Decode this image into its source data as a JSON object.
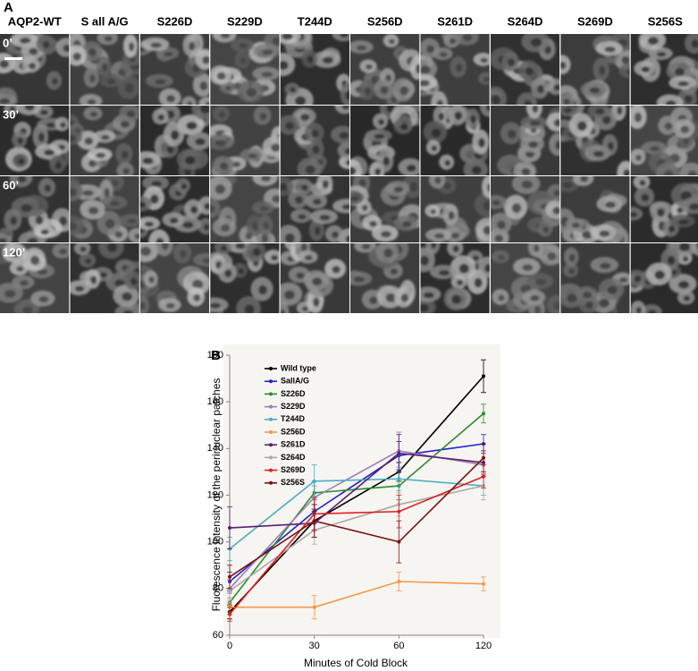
{
  "panel_a": {
    "label": "A",
    "columns": [
      "AQP2-WT",
      "S all A/G",
      "S226D",
      "S229D",
      "T244D",
      "S256D",
      "S261D",
      "S264D",
      "S269D",
      "S256S"
    ],
    "rows": [
      "0’",
      "30’",
      "60’",
      "120’"
    ]
  },
  "chart_data": {
    "type": "line",
    "panel_label": "B",
    "x_label": "Minutes of Cold Block",
    "y_label": "Fluorescence intensity of the perinuclear patches",
    "categories": [
      "0",
      "30",
      "60",
      "120"
    ],
    "ylim": [
      60,
      180
    ],
    "yticks": [
      60,
      80,
      100,
      120,
      140,
      160,
      180
    ],
    "legend": "upper left",
    "series": [
      {
        "name": "Wild type",
        "color": "#000000",
        "values": [
          70,
          109,
          130,
          171
        ],
        "errors": [
          3,
          4,
          4,
          7
        ]
      },
      {
        "name": "SallA/G",
        "color": "#2222cc",
        "values": [
          83,
          113,
          137,
          142
        ],
        "errors": [
          4,
          5,
          6,
          4
        ]
      },
      {
        "name": "S226D",
        "color": "#2e8b2e",
        "values": [
          74,
          121,
          124,
          155
        ],
        "errors": [
          4,
          5,
          6,
          4
        ]
      },
      {
        "name": "S229D",
        "color": "#9b7fb0",
        "values": [
          80,
          119,
          139,
          133
        ],
        "errors": [
          4,
          5,
          8,
          5
        ]
      },
      {
        "name": "T244D",
        "color": "#4bacc6",
        "values": [
          97,
          126,
          127,
          124
        ],
        "errors": [
          5,
          7,
          5,
          4
        ]
      },
      {
        "name": "S256D",
        "color": "#f79646",
        "values": [
          72,
          72,
          83,
          82
        ],
        "errors": [
          3,
          5,
          4,
          3
        ]
      },
      {
        "name": "S261D",
        "color": "#5c1f70",
        "values": [
          106,
          108,
          138,
          134
        ],
        "errors": [
          9,
          6,
          8,
          5
        ]
      },
      {
        "name": "S264D",
        "color": "#aaaaaa",
        "values": [
          79,
          105,
          116,
          124
        ],
        "errors": [
          5,
          6,
          5,
          6
        ]
      },
      {
        "name": "S269D",
        "color": "#e0201e",
        "values": [
          69,
          112,
          113,
          128
        ],
        "errors": [
          3,
          7,
          7,
          5
        ]
      },
      {
        "name": "S256S",
        "color": "#7b1010",
        "values": [
          85,
          109,
          100,
          136
        ],
        "errors": [
          5,
          7,
          9,
          6
        ]
      }
    ]
  }
}
